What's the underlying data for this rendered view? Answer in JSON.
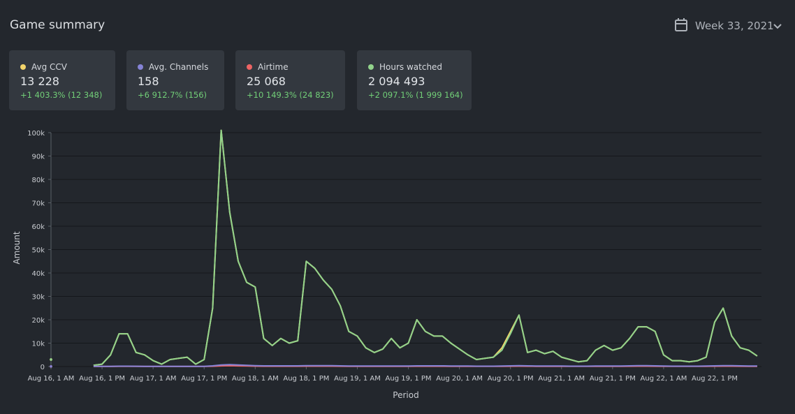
{
  "header": {
    "title": "Game summary",
    "period": "Week 33, 2021"
  },
  "cards": [
    {
      "value": "13 228",
      "change": "+1 403.3% (12 348)"
    },
    {
      "value": "158",
      "change": "+6 912.7% (156)"
    },
    {
      "value": "25 068",
      "change": "+10 149.3% (24 823)"
    },
    {
      "value": "2 094 493",
      "change": "+2 097.1% (1 999 164)"
    }
  ],
  "chart_data": {
    "type": "line",
    "x_label": "Period",
    "y_label": "Amount",
    "xlim": [
      0,
      167
    ],
    "ylim": [
      0,
      100000
    ],
    "grid": true,
    "yticks": [
      {
        "value": 0,
        "label": "0"
      },
      {
        "value": 10000,
        "label": "10k"
      },
      {
        "value": 20000,
        "label": "20k"
      },
      {
        "value": 30000,
        "label": "30k"
      },
      {
        "value": 40000,
        "label": "40k"
      },
      {
        "value": 50000,
        "label": "50k"
      },
      {
        "value": 60000,
        "label": "60k"
      },
      {
        "value": 70000,
        "label": "70k"
      },
      {
        "value": 80000,
        "label": "80k"
      },
      {
        "value": 90000,
        "label": "90k"
      },
      {
        "value": 100000,
        "label": "100k"
      }
    ],
    "xticks": [
      {
        "value": 0,
        "label": "Aug 16, 1 AM"
      },
      {
        "value": 12,
        "label": "Aug 16, 1 PM"
      },
      {
        "value": 24,
        "label": "Aug 17, 1 AM"
      },
      {
        "value": 36,
        "label": "Aug 17, 1 PM"
      },
      {
        "value": 48,
        "label": "Aug 18, 1 AM"
      },
      {
        "value": 60,
        "label": "Aug 18, 1 PM"
      },
      {
        "value": 72,
        "label": "Aug 19, 1 AM"
      },
      {
        "value": 84,
        "label": "Aug 19, 1 PM"
      },
      {
        "value": 96,
        "label": "Aug 20, 1 AM"
      },
      {
        "value": 108,
        "label": "Aug 20, 1 PM"
      },
      {
        "value": 120,
        "label": "Aug 21, 1 AM"
      },
      {
        "value": 132,
        "label": "Aug 21, 1 PM"
      },
      {
        "value": 144,
        "label": "Aug 22, 1 AM"
      },
      {
        "value": 156,
        "label": "Aug 22, 1 PM"
      }
    ],
    "x": [
      0,
      2,
      4,
      6,
      8,
      10,
      12,
      14,
      16,
      18,
      20,
      22,
      24,
      26,
      28,
      30,
      32,
      34,
      36,
      38,
      40,
      42,
      44,
      46,
      48,
      50,
      52,
      54,
      56,
      58,
      60,
      62,
      64,
      66,
      68,
      70,
      72,
      74,
      76,
      78,
      80,
      82,
      84,
      86,
      88,
      90,
      92,
      94,
      96,
      98,
      100,
      102,
      104,
      106,
      108,
      110,
      112,
      114,
      116,
      118,
      120,
      122,
      124,
      126,
      128,
      130,
      132,
      134,
      136,
      138,
      140,
      142,
      144,
      146,
      148,
      150,
      152,
      154,
      156,
      158,
      160,
      162,
      164,
      166
    ],
    "series": [
      {
        "name": "Avg CCV",
        "color": "#f2d46b",
        "values": [
          3000,
          null,
          null,
          null,
          null,
          500,
          1000,
          5000,
          14000,
          14000,
          6000,
          5000,
          2500,
          1000,
          3000,
          3500,
          4000,
          1000,
          3000,
          25000,
          101000,
          66000,
          45000,
          36000,
          34000,
          12000,
          9000,
          12000,
          10000,
          11000,
          45000,
          42000,
          37000,
          33000,
          26000,
          15000,
          13000,
          8000,
          6000,
          7500,
          12000,
          8000,
          10000,
          20000,
          15000,
          13000,
          13000,
          10000,
          7500,
          5000,
          3000,
          3500,
          4000,
          8000,
          15000,
          22000,
          6000,
          7000,
          5500,
          6500,
          4000,
          3000,
          2000,
          2500,
          7000,
          9000,
          7000,
          8000,
          12000,
          17000,
          17000,
          15000,
          5000,
          2500,
          2500,
          2000,
          2500,
          4000,
          19000,
          25000,
          13000,
          8000,
          7000,
          4500
        ]
      },
      {
        "name": "Avg. Channels",
        "color": "#8583d6",
        "values": [
          50,
          null,
          null,
          null,
          null,
          100,
          100,
          100,
          150,
          150,
          120,
          100,
          100,
          80,
          100,
          100,
          100,
          80,
          100,
          300,
          700,
          800,
          700,
          500,
          400,
          300,
          300,
          300,
          300,
          300,
          400,
          400,
          350,
          350,
          300,
          250,
          250,
          200,
          200,
          200,
          250,
          250,
          250,
          300,
          300,
          300,
          300,
          250,
          200,
          200,
          150,
          150,
          150,
          200,
          300,
          400,
          300,
          250,
          250,
          250,
          200,
          150,
          150,
          150,
          200,
          250,
          250,
          250,
          300,
          350,
          350,
          300,
          200,
          150,
          150,
          150,
          150,
          200,
          300,
          400,
          350,
          300,
          250,
          200
        ]
      },
      {
        "name": "Airtime",
        "color": "#ee6464",
        "values": [
          20,
          null,
          null,
          null,
          null,
          40,
          40,
          40,
          60,
          60,
          50,
          40,
          40,
          30,
          40,
          40,
          40,
          30,
          40,
          120,
          280,
          320,
          280,
          200,
          160,
          120,
          120,
          120,
          120,
          120,
          160,
          160,
          140,
          140,
          120,
          100,
          100,
          80,
          80,
          80,
          100,
          100,
          100,
          120,
          120,
          120,
          120,
          100,
          80,
          80,
          60,
          60,
          60,
          80,
          120,
          160,
          120,
          100,
          100,
          100,
          80,
          60,
          60,
          60,
          80,
          100,
          100,
          100,
          120,
          140,
          140,
          120,
          80,
          60,
          60,
          60,
          60,
          80,
          120,
          160,
          140,
          120,
          100,
          80
        ]
      },
      {
        "name": "Hours watched",
        "color": "#92d38b",
        "values": [
          3000,
          null,
          null,
          null,
          null,
          500,
          1000,
          5000,
          14000,
          14000,
          6000,
          5000,
          2500,
          1000,
          3000,
          3500,
          4000,
          1000,
          3000,
          25000,
          101000,
          66000,
          45000,
          36000,
          34000,
          12000,
          9000,
          12000,
          10000,
          11000,
          45000,
          42000,
          37000,
          33000,
          26000,
          15000,
          13000,
          8000,
          6000,
          7500,
          12000,
          8000,
          10000,
          20000,
          15000,
          13000,
          13000,
          10000,
          7500,
          5000,
          3000,
          3500,
          4000,
          7000,
          14000,
          22000,
          6000,
          7000,
          5500,
          6500,
          4000,
          3000,
          2000,
          2500,
          7000,
          9000,
          7000,
          8000,
          12000,
          17000,
          17000,
          15000,
          5000,
          2500,
          2500,
          2000,
          2500,
          4000,
          19000,
          25000,
          13000,
          8000,
          7000,
          4500
        ]
      }
    ]
  }
}
